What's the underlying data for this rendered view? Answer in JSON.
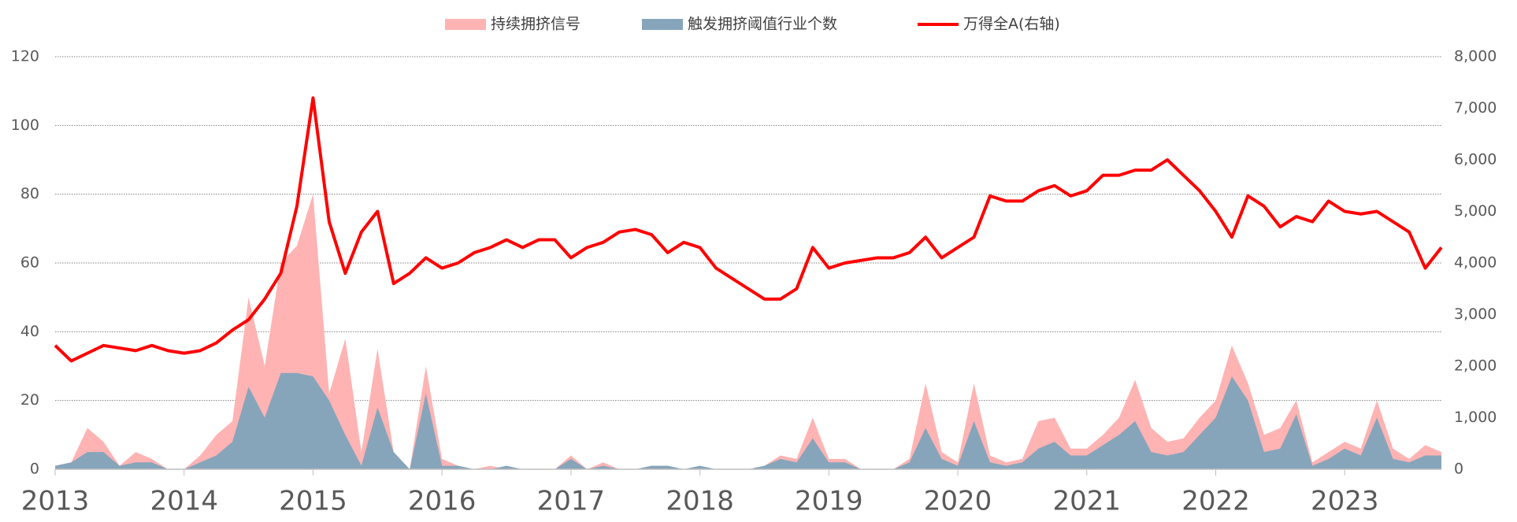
{
  "chart_data": {
    "type": "area",
    "x": [
      2013,
      2013.125,
      2013.25,
      2013.375,
      2013.5,
      2013.625,
      2013.75,
      2013.875,
      2014,
      2014.125,
      2014.25,
      2014.375,
      2014.5,
      2014.625,
      2014.75,
      2014.875,
      2015,
      2015.125,
      2015.25,
      2015.375,
      2015.5,
      2015.625,
      2015.75,
      2015.875,
      2016,
      2016.125,
      2016.25,
      2016.375,
      2016.5,
      2016.625,
      2016.75,
      2016.875,
      2017,
      2017.125,
      2017.25,
      2017.375,
      2017.5,
      2017.625,
      2017.75,
      2017.875,
      2018,
      2018.125,
      2018.25,
      2018.375,
      2018.5,
      2018.625,
      2018.75,
      2018.875,
      2019,
      2019.125,
      2019.25,
      2019.375,
      2019.5,
      2019.625,
      2019.75,
      2019.875,
      2020,
      2020.125,
      2020.25,
      2020.375,
      2020.5,
      2020.625,
      2020.75,
      2020.875,
      2021,
      2021.125,
      2021.25,
      2021.375,
      2021.5,
      2021.625,
      2021.75,
      2021.875,
      2022,
      2022.125,
      2022.25,
      2022.375,
      2022.5,
      2022.625,
      2022.75,
      2022.875,
      2023,
      2023.125,
      2023.25,
      2023.375,
      2023.5,
      2023.625,
      2023.75
    ],
    "series": [
      {
        "name": "持续拥挤信号",
        "color": "#ffb3b3",
        "values": [
          1,
          2,
          12,
          8,
          1,
          5,
          3,
          0,
          0,
          4,
          10,
          14,
          50,
          30,
          60,
          65,
          80,
          22,
          38,
          5,
          35,
          5,
          0,
          30,
          3,
          1,
          0,
          1,
          0,
          0,
          0,
          0,
          4,
          0,
          2,
          0,
          0,
          1,
          1,
          0,
          1,
          0,
          0,
          0,
          1,
          4,
          3,
          15,
          3,
          3,
          0,
          0,
          0,
          3,
          25,
          5,
          2,
          25,
          4,
          2,
          3,
          14,
          15,
          6,
          6,
          10,
          15,
          26,
          12,
          8,
          9,
          15,
          20,
          36,
          25,
          10,
          12,
          20,
          2,
          5,
          8,
          6,
          20,
          6,
          3,
          7,
          5
        ]
      },
      {
        "name": "触发拥挤阈值行业个数",
        "color": "#86a5bb",
        "values": [
          1,
          2,
          5,
          5,
          1,
          2,
          2,
          0,
          0,
          2,
          4,
          8,
          24,
          15,
          28,
          28,
          27,
          20,
          10,
          1,
          18,
          5,
          0,
          22,
          1,
          1,
          0,
          0,
          1,
          0,
          0,
          0,
          3,
          0,
          1,
          0,
          0,
          1,
          1,
          0,
          1,
          0,
          0,
          0,
          1,
          3,
          2,
          9,
          2,
          2,
          0,
          0,
          0,
          2,
          12,
          3,
          1,
          14,
          2,
          1,
          2,
          6,
          8,
          4,
          4,
          7,
          10,
          14,
          5,
          4,
          5,
          10,
          15,
          27,
          20,
          5,
          6,
          16,
          1,
          3,
          6,
          4,
          15,
          3,
          2,
          4,
          4
        ]
      },
      {
        "name": "万得全A(右轴)",
        "color": "#ff0000",
        "type": "line",
        "axis": "y2",
        "values": [
          2400,
          2100,
          2250,
          2400,
          2350,
          2300,
          2400,
          2300,
          2250,
          2300,
          2450,
          2700,
          2900,
          3300,
          3800,
          5100,
          7200,
          4800,
          3800,
          4600,
          5000,
          3600,
          3800,
          4100,
          3900,
          4000,
          4200,
          4300,
          4450,
          4300,
          4450,
          4450,
          4100,
          4300,
          4400,
          4600,
          4650,
          4550,
          4200,
          4400,
          4300,
          3900,
          3700,
          3500,
          3300,
          3300,
          3500,
          4300,
          3900,
          4000,
          4050,
          4100,
          4100,
          4200,
          4500,
          4100,
          4300,
          4500,
          5300,
          5200,
          5200,
          5400,
          5500,
          5300,
          5400,
          5700,
          5700,
          5800,
          5800,
          6000,
          5700,
          5400,
          5000,
          4500,
          5300,
          5100,
          4700,
          4900,
          4800,
          5200,
          5000,
          4950,
          5000,
          4800,
          4600,
          3900,
          4300
        ]
      }
    ],
    "xlim": [
      2013,
      2023.75
    ],
    "xticks": [
      2013,
      2014,
      2015,
      2016,
      2017,
      2018,
      2019,
      2020,
      2021,
      2022,
      2023
    ],
    "ylim": [
      0,
      120
    ],
    "yticks": [
      0,
      20,
      40,
      60,
      80,
      100,
      120
    ],
    "y2lim": [
      0,
      8000
    ],
    "y2ticks": [
      0,
      {
        "value": 1000,
        "label": "1,000"
      },
      {
        "value": 2000,
        "label": "2,000"
      },
      {
        "value": 3000,
        "label": "3,000"
      },
      {
        "value": 4000,
        "label": "4,000"
      },
      {
        "value": 5000,
        "label": "5,000"
      },
      {
        "value": 6000,
        "label": "6,000"
      },
      {
        "value": 7000,
        "label": "7,000"
      },
      {
        "value": 8000,
        "label": "8,000"
      }
    ],
    "grid": true,
    "legend": "top"
  }
}
